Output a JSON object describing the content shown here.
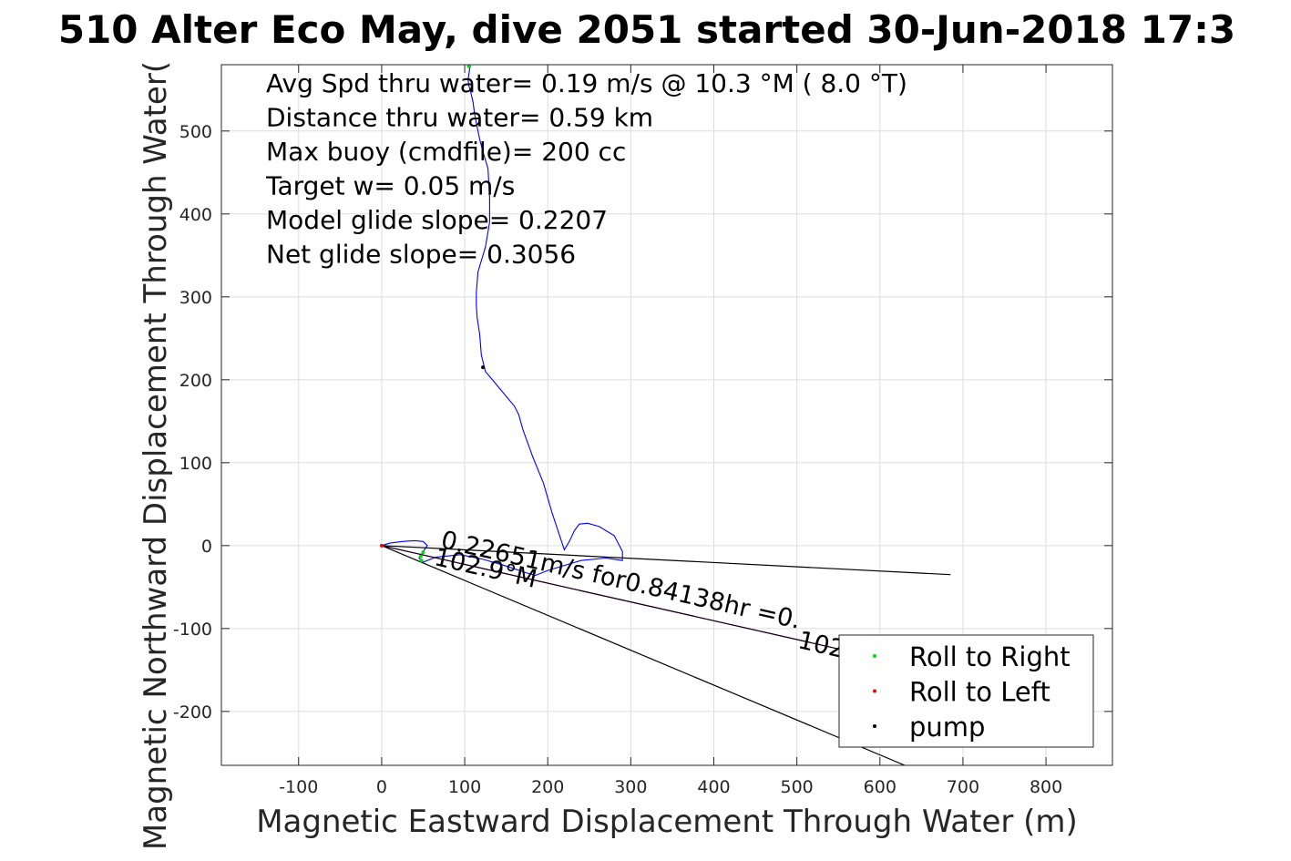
{
  "chart_data": {
    "type": "line",
    "title": "510 Alter Eco May, dive 2051 started 30-Jun-2018 17:3",
    "xlabel": "Magnetic Eastward Displacement Through Water (m)",
    "ylabel": "Magnetic Northward Displacement Through Water(",
    "xlim": [
      -193,
      880
    ],
    "ylim": [
      -265,
      580
    ],
    "xticks": [
      -100,
      0,
      100,
      200,
      300,
      400,
      500,
      600,
      700,
      800
    ],
    "yticks": [
      -200,
      -100,
      0,
      100,
      200,
      300,
      400,
      500
    ],
    "xtick_labels": [
      "-100",
      "0",
      "100",
      "200",
      "300",
      "400",
      "500",
      "600",
      "700",
      "800"
    ],
    "ytick_labels": [
      "-200",
      "-100",
      "0",
      "100",
      "200",
      "300",
      "400",
      "500"
    ],
    "grid": true,
    "annotations": [
      "Avg Spd thru water=  0.19 m/s @  10.3 °M (  8.0 °T)",
      "Distance thru water=  0.59 km",
      "Max buoy (cmdfile)= 200 cc",
      "Target w= 0.05 m/s",
      "Model glide slope= 0.2207",
      "Net glide slope= 0.3056"
    ],
    "line_labels": [
      "0.22651m/s for0.84138hr =0.",
      "102.9°M",
      "102"
    ],
    "series": [
      {
        "color": "#0000ff",
        "x": [
          0,
          10,
          25,
          40,
          50,
          55,
          50,
          45,
          50,
          65,
          95,
          120,
          145,
          160,
          175,
          185,
          200,
          240,
          270,
          290,
          290,
          280,
          262,
          248,
          238,
          232,
          226,
          220,
          205,
          195,
          182,
          170,
          165,
          160,
          150,
          135,
          125,
          120,
          118,
          115,
          114,
          114,
          116,
          125,
          130,
          130,
          128,
          122,
          118,
          115,
          112,
          110,
          107,
          105,
          104,
          105,
          106,
          107
        ],
        "y": [
          0,
          3,
          5,
          6,
          5,
          0,
          -7,
          -15,
          -20,
          -14,
          -11,
          -16,
          -23,
          -28,
          -33,
          -36,
          -30,
          -18,
          -15,
          -18,
          -7,
          12,
          23,
          27,
          26,
          18,
          5,
          -5,
          40,
          75,
          107,
          140,
          158,
          168,
          180,
          198,
          210,
          230,
          255,
          275,
          290,
          305,
          330,
          360,
          390,
          420,
          455,
          475,
          490,
          505,
          520,
          535,
          548,
          555,
          562,
          568,
          575,
          579
        ]
      },
      {
        "color": "#ff00ff",
        "x": [
          0,
          640
        ],
        "y": [
          0,
          -145
        ]
      },
      {
        "color": "#000000",
        "x": [
          0,
          685
        ],
        "y": [
          0,
          -35
        ]
      },
      {
        "color": "#000000",
        "x": [
          0,
          630
        ],
        "y": [
          0,
          -265
        ]
      },
      {
        "color": "#000000",
        "x": [
          0,
          640
        ],
        "y": [
          0,
          -145
        ]
      }
    ],
    "markers": [
      {
        "name": "Roll to Right",
        "color": "#00dd00",
        "points": [
          [
            50,
            -8
          ],
          [
            47,
            -13
          ],
          [
            48,
            -18
          ],
          [
            105,
            578
          ]
        ]
      },
      {
        "name": "Roll to Left",
        "color": "#ff0000",
        "points": [
          [
            0,
            0
          ]
        ]
      },
      {
        "name": "pump",
        "color": "#000000",
        "points": [
          [
            122,
            215
          ]
        ]
      }
    ],
    "legend": {
      "placement": "bottom-right",
      "entries": [
        {
          "label": "Roll to Right",
          "color": "#00dd00"
        },
        {
          "label": "Roll to Left",
          "color": "#ff0000"
        },
        {
          "label": "pump",
          "color": "#000000"
        }
      ]
    }
  }
}
